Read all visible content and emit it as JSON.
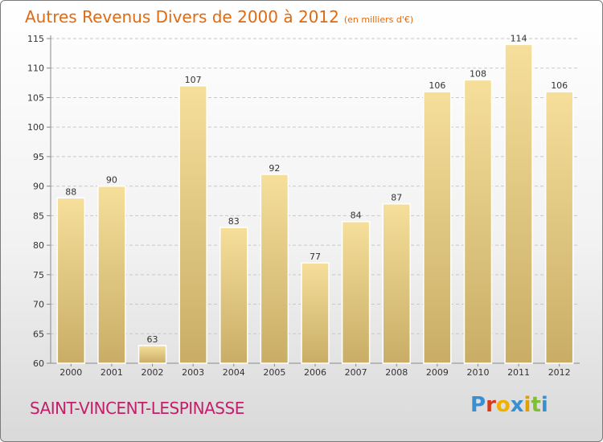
{
  "title": "Autres Revenus Divers de 2000 à 2012",
  "subtitle": "(en milliers d'€)",
  "city": "SAINT-VINCENT-LESPINASSE",
  "logo": "Proxiti",
  "colors": {
    "title": "#e06a10",
    "city": "#c41e6a",
    "bar_light": "#f5df9a",
    "bar_dark": "#c9ad66",
    "logo_letters": [
      "#3a8fd0",
      "#d63a1a",
      "#f0b000",
      "#3a8fd0",
      "#e0a000",
      "#7fbf30",
      "#3a8fd0"
    ]
  },
  "chart_data": {
    "type": "bar",
    "title": "Autres Revenus Divers de 2000 à 2012",
    "subtitle": "(en milliers d'€)",
    "categories": [
      "2000",
      "2001",
      "2002",
      "2003",
      "2004",
      "2005",
      "2006",
      "2007",
      "2008",
      "2009",
      "2010",
      "2011",
      "2012"
    ],
    "values": [
      88,
      90,
      63,
      107,
      83,
      92,
      77,
      84,
      87,
      106,
      108,
      114,
      106
    ],
    "ylim": [
      60,
      115
    ],
    "yticks": [
      60,
      65,
      70,
      75,
      80,
      85,
      90,
      95,
      100,
      105,
      110,
      115
    ],
    "grid": true,
    "legend": "none"
  }
}
